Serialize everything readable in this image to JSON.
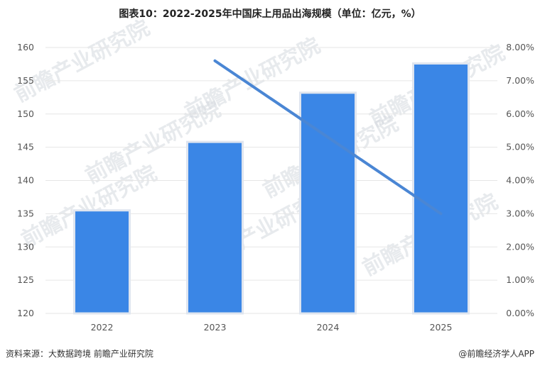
{
  "chart_data": {
    "type": "bar",
    "title": "图表10：2022-2025年中国床上用品出海规模（单位：亿元，%）",
    "categories": [
      "2022",
      "2023",
      "2024",
      "2025"
    ],
    "series": [
      {
        "type": "bar",
        "axis": "left",
        "values": [
          135.5,
          145.8,
          153.2,
          157.6
        ]
      },
      {
        "type": "line",
        "axis": "right",
        "values": [
          null,
          7.6,
          5.3,
          3.0
        ]
      }
    ],
    "y_left": {
      "ylim": [
        120,
        160
      ],
      "ticks": [
        "120",
        "125",
        "130",
        "135",
        "140",
        "145",
        "150",
        "155",
        "160"
      ]
    },
    "y_right": {
      "ylim": [
        0,
        8
      ],
      "ticks": [
        "0.00%",
        "1.00%",
        "2.00%",
        "3.00%",
        "4.00%",
        "5.00%",
        "6.00%",
        "7.00%",
        "8.00%"
      ]
    },
    "grid": true,
    "legend": "none",
    "colors": {
      "bar": "#3a86e6",
      "bar_outline": "#dfe5ef",
      "line": "#4a86d4",
      "grid": "#e6e6e6"
    }
  },
  "footer": {
    "source": "资料来源：大数据跨境  前瞻产业研究院",
    "brand": "@前瞻经济学人APP"
  },
  "watermark": "前瞻产业研究院"
}
